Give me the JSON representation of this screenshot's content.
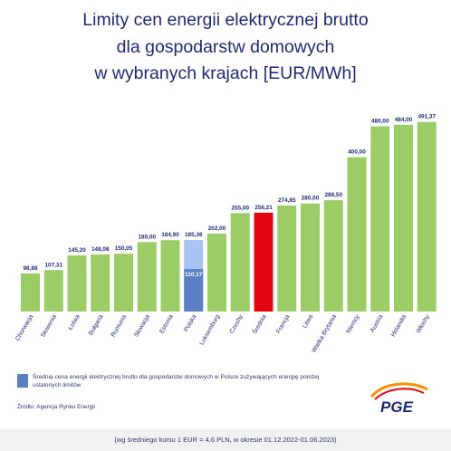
{
  "title": {
    "line1": "Limity cen energii elektrycznej brutto",
    "line2": "dla gospodarstw domowych",
    "line3": "w wybranych krajach [EUR/MWh]"
  },
  "chart_data": {
    "type": "bar",
    "title": "Limity cen energii elektrycznej brutto dla gospodarstw domowych w wybranych krajach [EUR/MWh]",
    "categories": [
      "Chorwacja",
      "Słowenia",
      "Łotwa",
      "Bułgaria",
      "Rumunia",
      "Słowacja",
      "Estonia",
      "Polska",
      "Luksemburg",
      "Czechy",
      "Średnia",
      "Francja",
      "Litwa",
      "Wielka Brytania",
      "Niemcy",
      "Austria",
      "Holandia",
      "Włochy"
    ],
    "values": [
      98.88,
      107.31,
      145.2,
      148.08,
      150.05,
      180.0,
      184.9,
      185.36,
      202.0,
      255.0,
      256.21,
      274.85,
      280.0,
      288.5,
      400.0,
      480.0,
      484.0,
      491.37
    ],
    "value_labels": [
      "98,88",
      "107,31",
      "145,20",
      "148,08",
      "150,05",
      "180,00",
      "184,90",
      "185,36",
      "202,00",
      "255,00",
      "256,21",
      "274,85",
      "280,00",
      "288,50",
      "400,00",
      "480,00",
      "484,00",
      "491,37"
    ],
    "overlay": {
      "category": "Polska",
      "value": 110.17,
      "label": "110,17"
    },
    "colors": {
      "default": "#9ccc65",
      "highlight_average": "#e3060f",
      "poland_limit": "#a9c3f2",
      "poland_average": "#5b7fc4"
    },
    "ylim": [
      0,
      500
    ],
    "xlabel": "",
    "ylabel": "",
    "grid": false,
    "legend": "bottom-left"
  },
  "legend": {
    "text": "Średnia cena energii elektrycznej brutto dla gospodarstw domowych w Polsce zużywających energię poniżej ustalonych limitów"
  },
  "source": "Źródło: Agencja Rynku Energii",
  "logo_text": "PGE",
  "footer": "(wg średniego kursu 1 EUR = 4,6 PLN, w okresie 01.12.2022-01.06.2023)"
}
